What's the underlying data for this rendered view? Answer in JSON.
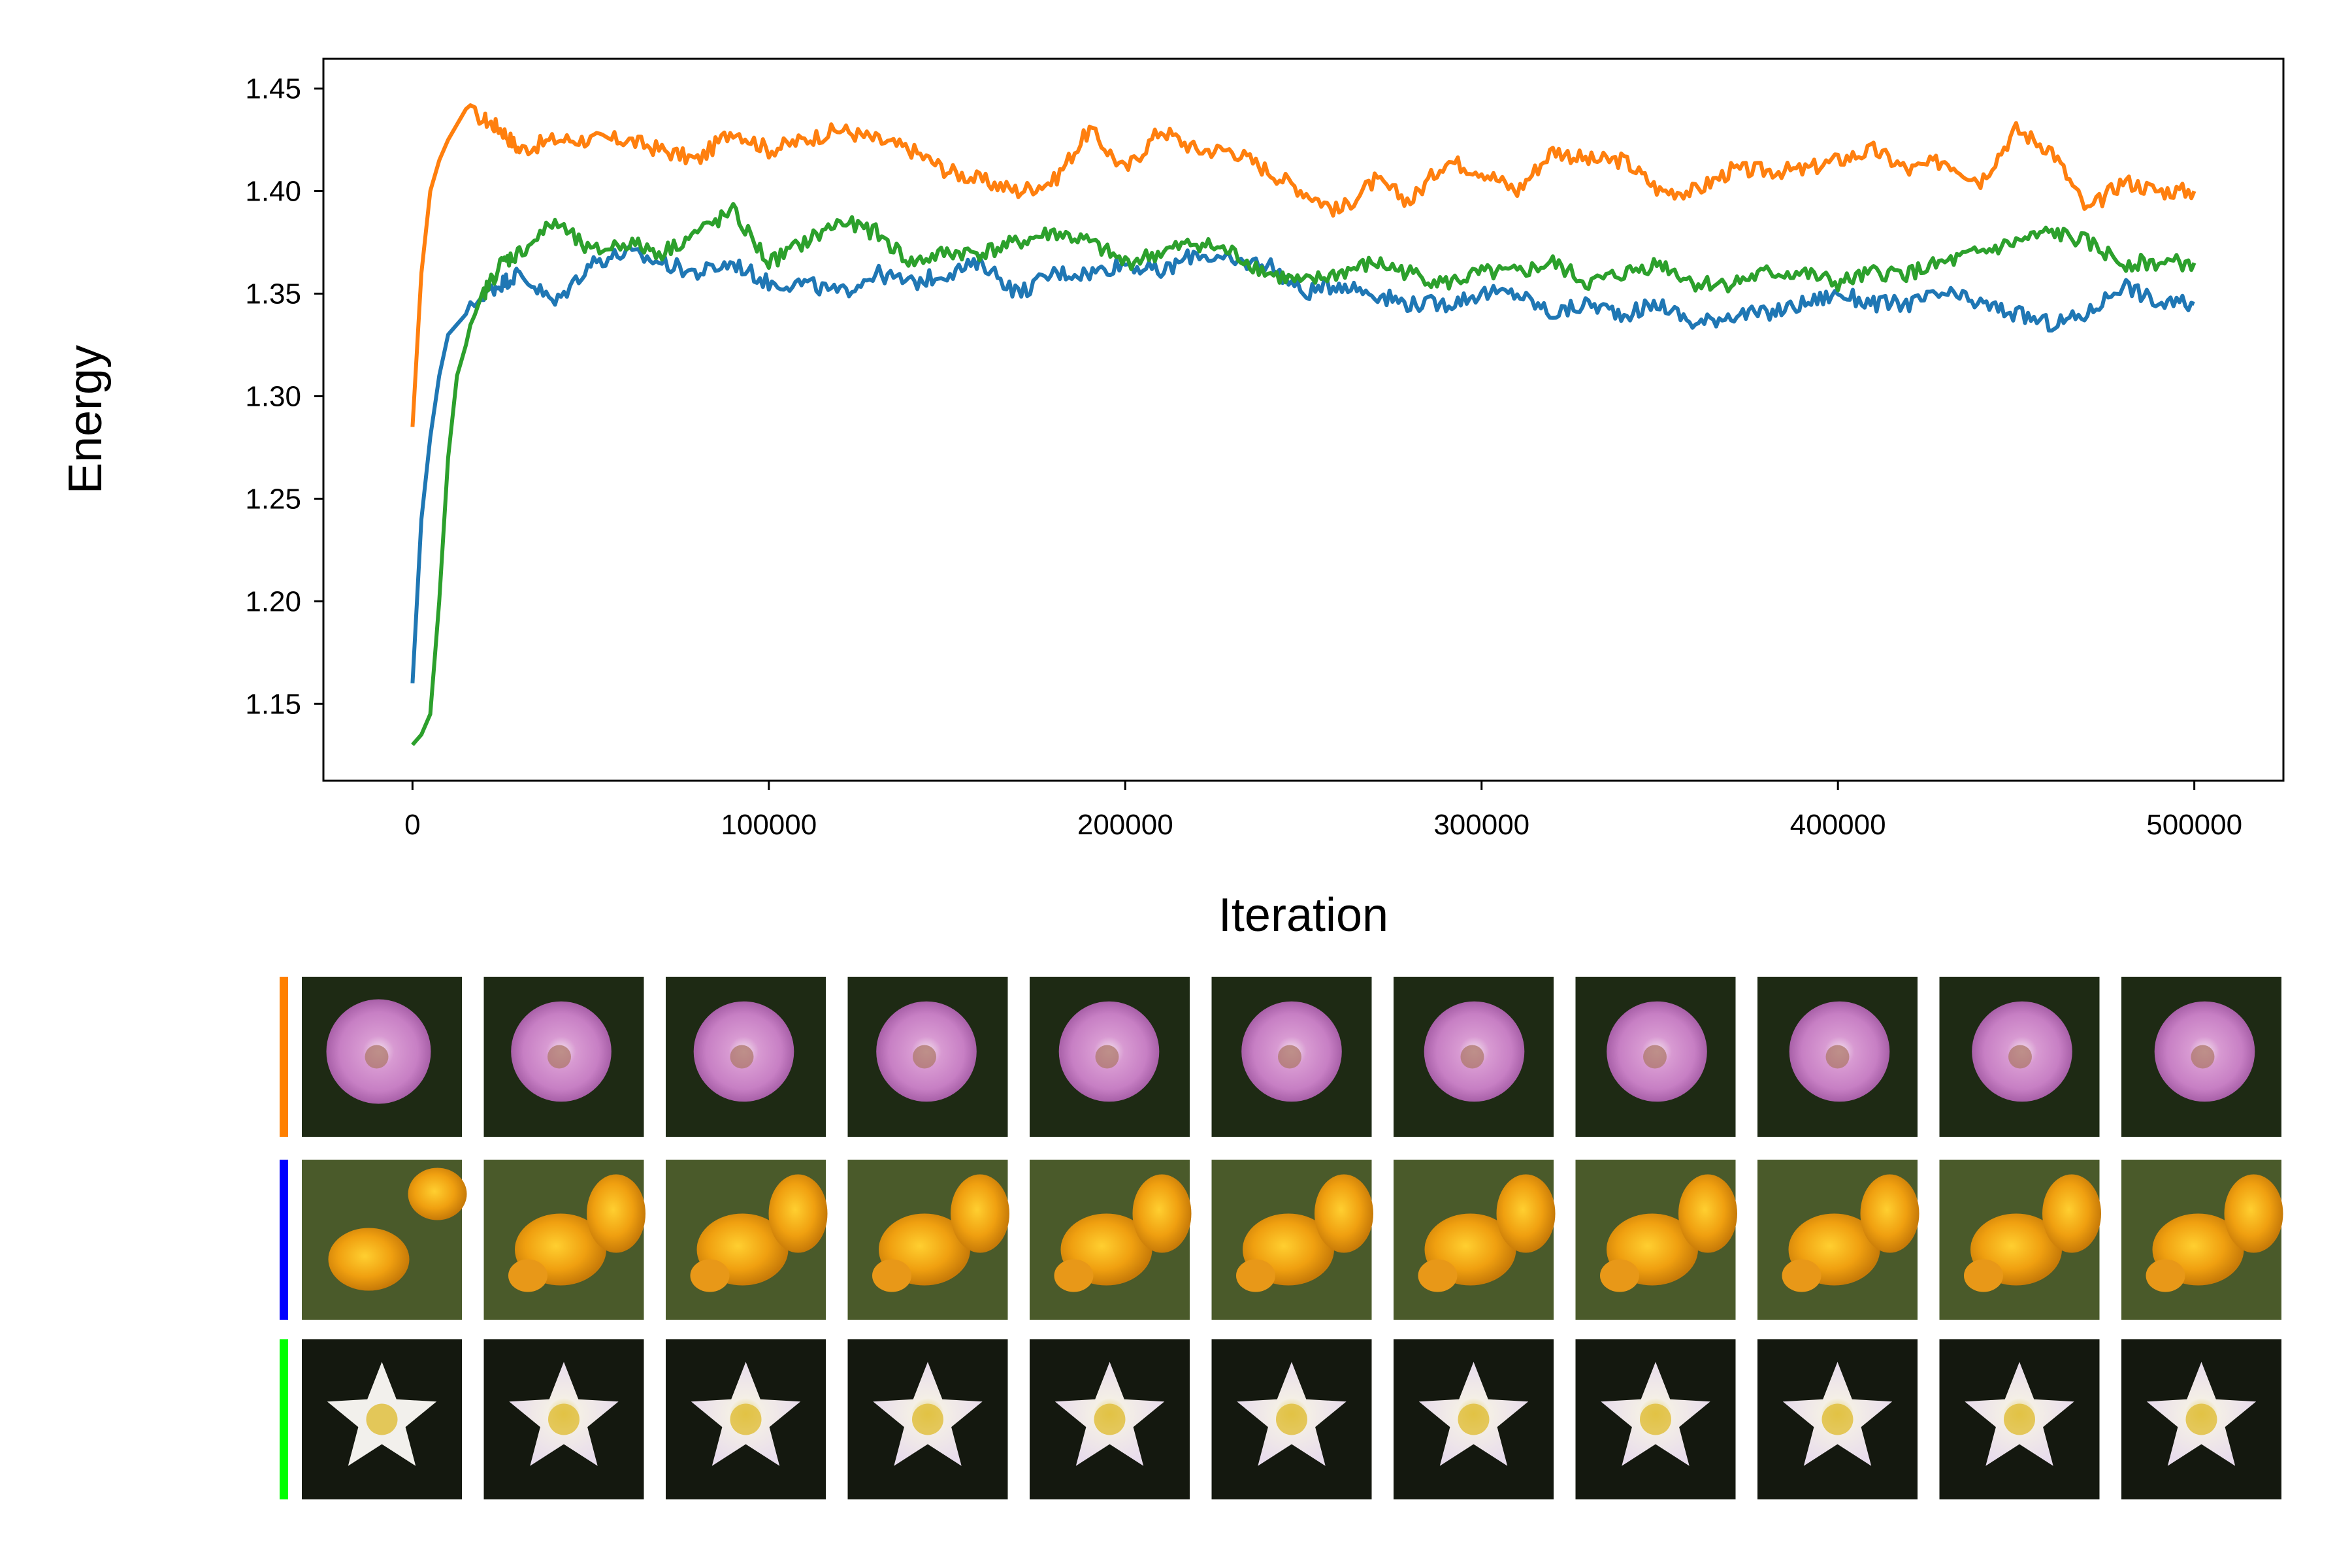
{
  "chart_data": {
    "type": "line",
    "title": "",
    "xlabel": "Iteration",
    "ylabel": "Energy",
    "xlim": [
      -25000,
      525000
    ],
    "ylim": [
      1.1125,
      1.4645
    ],
    "xticks": [
      0,
      100000,
      200000,
      300000,
      400000,
      500000
    ],
    "xtick_labels": [
      "0",
      "100000",
      "200000",
      "300000",
      "400000",
      "500000"
    ],
    "yticks": [
      1.15,
      1.2,
      1.25,
      1.3,
      1.35,
      1.4,
      1.45
    ],
    "ytick_labels": [
      "1.15",
      "1.20",
      "1.25",
      "1.30",
      "1.35",
      "1.40",
      "1.45"
    ],
    "grid": false,
    "legend": "none",
    "series": [
      {
        "name": "orange",
        "color": "#ff7f0e",
        "x": [
          0,
          2500,
          5000,
          7500,
          10000,
          15000,
          20000,
          25000,
          30000,
          40000,
          50000,
          60000,
          70000,
          80000,
          90000,
          100000,
          110000,
          120000,
          130000,
          140000,
          150000,
          160000,
          170000,
          180000,
          190000,
          200000,
          210000,
          220000,
          230000,
          240000,
          250000,
          260000,
          270000,
          280000,
          290000,
          300000,
          310000,
          320000,
          330000,
          340000,
          350000,
          360000,
          370000,
          380000,
          390000,
          400000,
          410000,
          420000,
          430000,
          440000,
          450000,
          460000,
          470000,
          480000,
          490000,
          500000
        ],
        "values": [
          1.285,
          1.36,
          1.4,
          1.415,
          1.425,
          1.44,
          1.435,
          1.43,
          1.42,
          1.425,
          1.425,
          1.425,
          1.42,
          1.415,
          1.43,
          1.42,
          1.425,
          1.43,
          1.425,
          1.42,
          1.41,
          1.405,
          1.4,
          1.405,
          1.43,
          1.41,
          1.43,
          1.42,
          1.42,
          1.41,
          1.4,
          1.39,
          1.405,
          1.395,
          1.415,
          1.41,
          1.4,
          1.42,
          1.415,
          1.415,
          1.4,
          1.4,
          1.41,
          1.41,
          1.41,
          1.415,
          1.42,
          1.41,
          1.415,
          1.405,
          1.43,
          1.42,
          1.39,
          1.405,
          1.4,
          1.4
        ]
      },
      {
        "name": "blue",
        "color": "#1f77b4",
        "x": [
          0,
          2500,
          5000,
          7500,
          10000,
          15000,
          20000,
          25000,
          30000,
          40000,
          50000,
          60000,
          70000,
          80000,
          90000,
          100000,
          110000,
          120000,
          130000,
          140000,
          150000,
          160000,
          170000,
          180000,
          190000,
          200000,
          210000,
          220000,
          230000,
          240000,
          250000,
          260000,
          270000,
          280000,
          290000,
          300000,
          310000,
          320000,
          330000,
          340000,
          350000,
          360000,
          370000,
          380000,
          390000,
          400000,
          410000,
          420000,
          430000,
          440000,
          450000,
          460000,
          470000,
          480000,
          490000,
          500000
        ],
        "values": [
          1.16,
          1.24,
          1.28,
          1.31,
          1.33,
          1.34,
          1.35,
          1.355,
          1.36,
          1.345,
          1.365,
          1.37,
          1.365,
          1.36,
          1.365,
          1.355,
          1.355,
          1.35,
          1.36,
          1.355,
          1.36,
          1.365,
          1.35,
          1.36,
          1.36,
          1.365,
          1.36,
          1.37,
          1.365,
          1.365,
          1.35,
          1.355,
          1.35,
          1.345,
          1.345,
          1.35,
          1.35,
          1.34,
          1.345,
          1.34,
          1.345,
          1.335,
          1.34,
          1.34,
          1.345,
          1.35,
          1.345,
          1.345,
          1.35,
          1.345,
          1.34,
          1.335,
          1.34,
          1.355,
          1.345,
          1.345
        ]
      },
      {
        "name": "green",
        "color": "#2ca02c",
        "x": [
          0,
          2500,
          5000,
          7500,
          10000,
          12500,
          15000,
          20000,
          25000,
          30000,
          40000,
          50000,
          60000,
          70000,
          80000,
          90000,
          100000,
          110000,
          120000,
          130000,
          140000,
          150000,
          160000,
          170000,
          180000,
          190000,
          200000,
          210000,
          220000,
          230000,
          240000,
          250000,
          260000,
          270000,
          280000,
          290000,
          300000,
          310000,
          320000,
          330000,
          340000,
          350000,
          360000,
          370000,
          380000,
          390000,
          400000,
          410000,
          420000,
          430000,
          440000,
          450000,
          460000,
          470000,
          480000,
          490000,
          500000
        ],
        "values": [
          1.13,
          1.135,
          1.145,
          1.2,
          1.27,
          1.31,
          1.325,
          1.35,
          1.365,
          1.37,
          1.385,
          1.37,
          1.375,
          1.37,
          1.38,
          1.39,
          1.365,
          1.375,
          1.385,
          1.38,
          1.365,
          1.37,
          1.37,
          1.375,
          1.38,
          1.375,
          1.365,
          1.37,
          1.375,
          1.37,
          1.36,
          1.355,
          1.36,
          1.365,
          1.36,
          1.355,
          1.36,
          1.36,
          1.365,
          1.355,
          1.36,
          1.365,
          1.355,
          1.355,
          1.36,
          1.36,
          1.355,
          1.36,
          1.36,
          1.365,
          1.37,
          1.375,
          1.38,
          1.375,
          1.365,
          1.365,
          1.365
        ]
      }
    ]
  },
  "image_grid": {
    "rows": [
      {
        "name": "orange",
        "marker_color": "#ff8000",
        "subject": "pink-flower",
        "image_count": 11
      },
      {
        "name": "blue",
        "marker_color": "#0000ff",
        "subject": "orange-poppies",
        "image_count": 11
      },
      {
        "name": "green",
        "marker_color": "#00ff00",
        "subject": "white-star-flower",
        "image_count": 11
      }
    ]
  }
}
